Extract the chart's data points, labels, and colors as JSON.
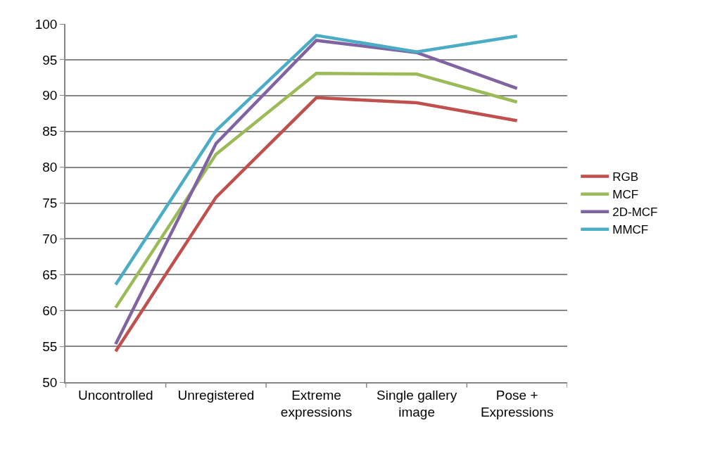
{
  "chart_data": {
    "type": "line",
    "categories": [
      "Uncontrolled",
      "Unregistered",
      "Extreme\nexpressions",
      "Single gallery\nimage",
      "Pose +\nExpressions"
    ],
    "series": [
      {
        "name": "RGB",
        "color": "#c0504d",
        "values": [
          54.3,
          75.8,
          89.7,
          89.0,
          86.5
        ]
      },
      {
        "name": "MCF",
        "color": "#9bbb59",
        "values": [
          60.4,
          81.8,
          93.1,
          93.0,
          89.1
        ]
      },
      {
        "name": "2D-MCF",
        "color": "#8064a2",
        "values": [
          55.3,
          83.3,
          97.7,
          96.0,
          91.0
        ]
      },
      {
        "name": "MMCF",
        "color": "#4bacc6",
        "values": [
          63.6,
          85.1,
          98.4,
          96.1,
          98.3
        ]
      }
    ],
    "ylim": [
      50,
      100
    ],
    "yticks": [
      50,
      55,
      60,
      65,
      70,
      75,
      80,
      85,
      90,
      95,
      100
    ],
    "grid": "y",
    "legend": "right",
    "marker": "none",
    "line_style": "solid"
  }
}
